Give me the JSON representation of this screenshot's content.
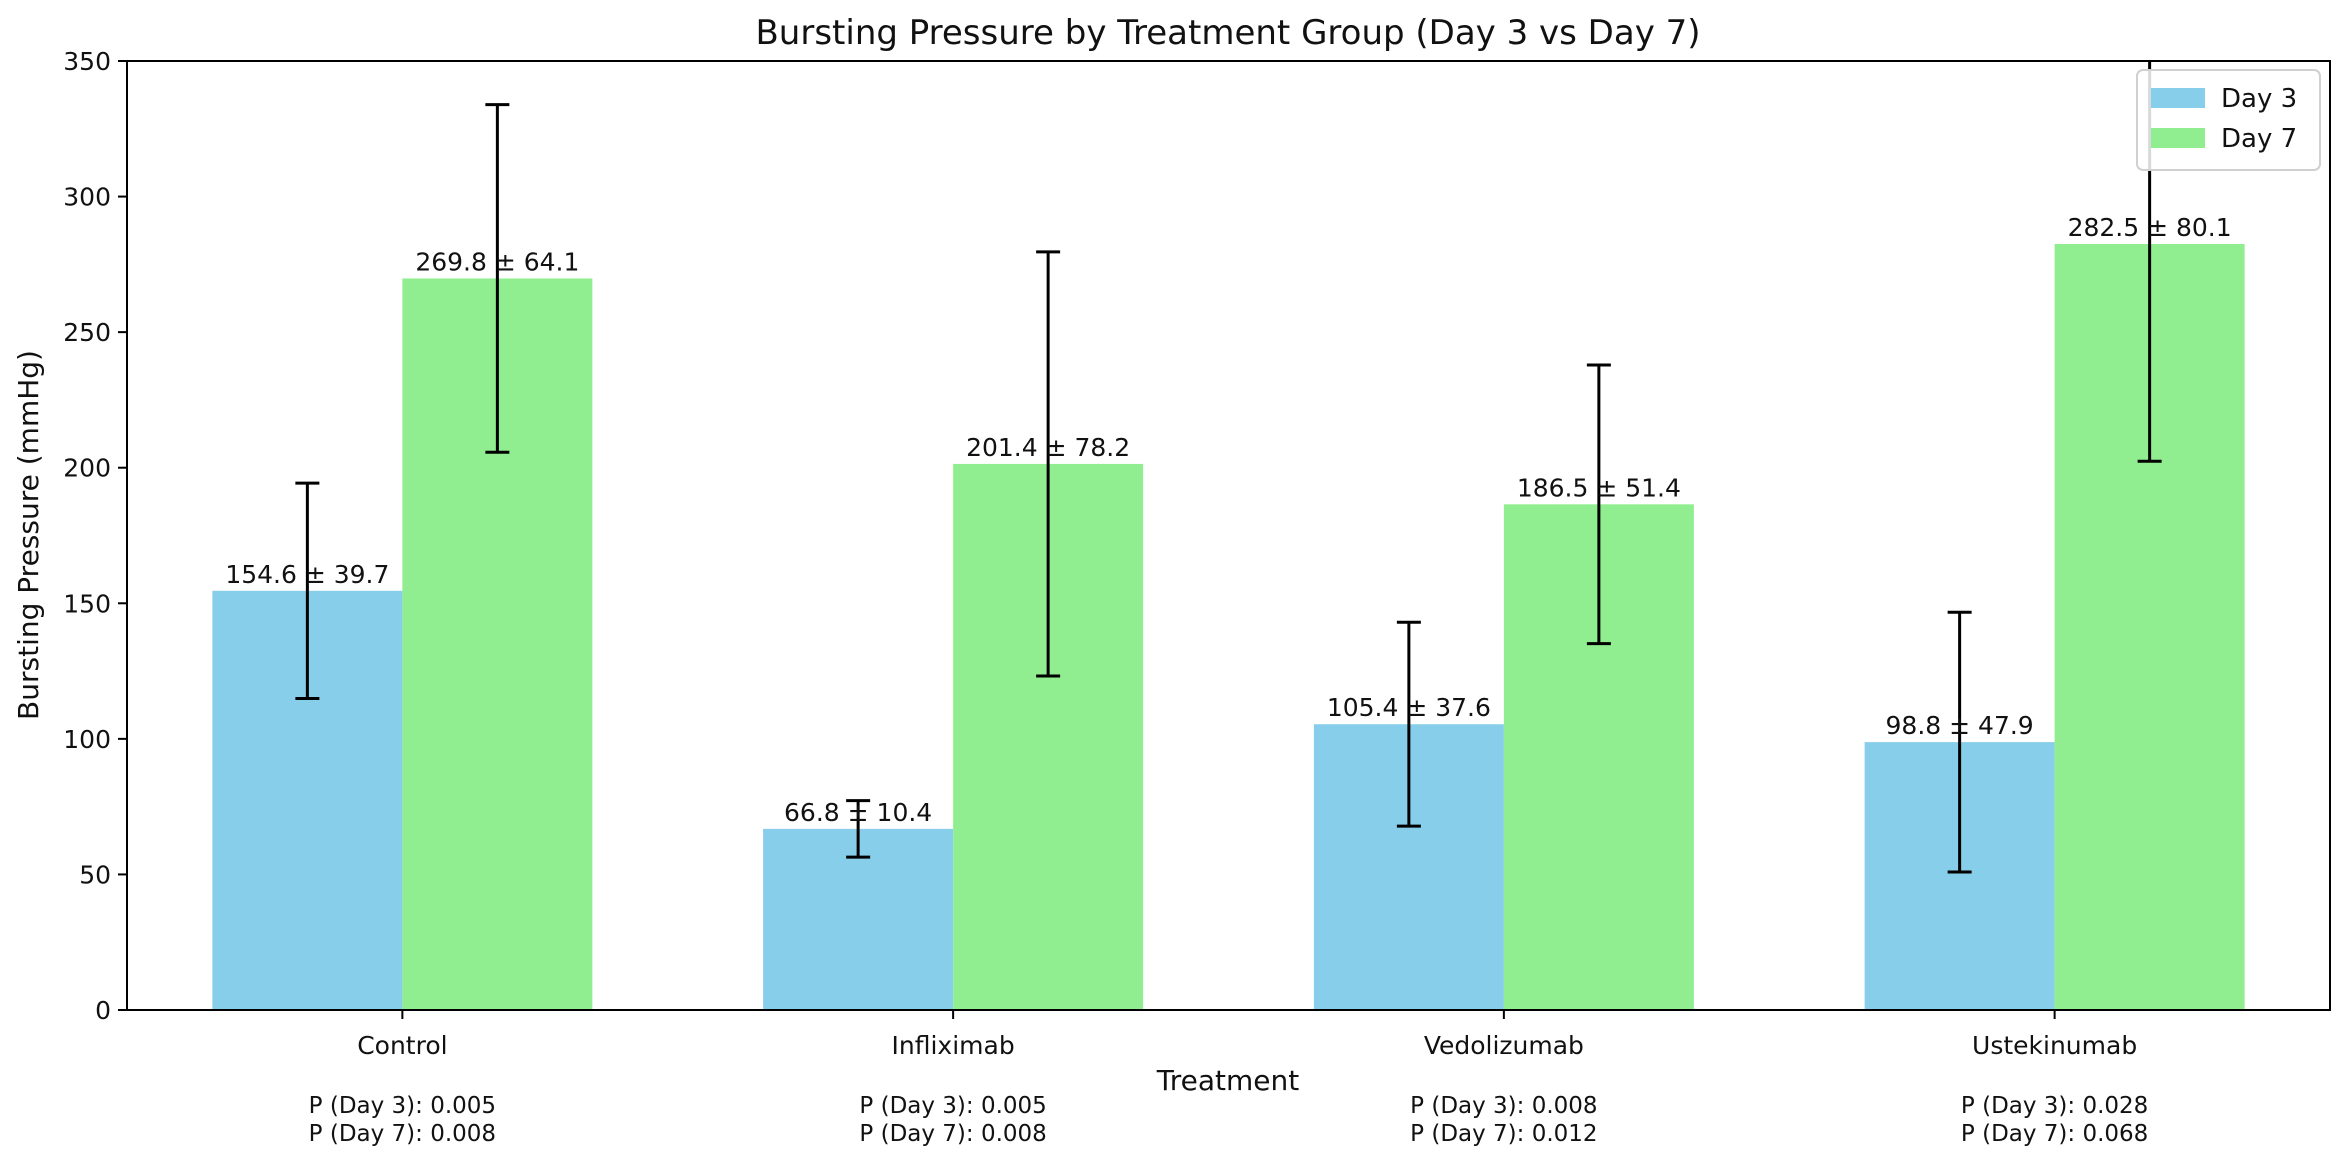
{
  "chart_data": {
    "type": "bar",
    "title": "Bursting Pressure by Treatment Group (Day 3 vs Day 7)",
    "xlabel": "Treatment",
    "ylabel": "Bursting Pressure (mmHg)",
    "ylim": [
      0,
      350
    ],
    "yticks": [
      0,
      50,
      100,
      150,
      200,
      250,
      300,
      350
    ],
    "grid": false,
    "legend_position": "top-right",
    "categories": [
      "Control",
      "Infliximab",
      "Vedolizumab",
      "Ustekinumab"
    ],
    "series": [
      {
        "name": "Day 3",
        "color": "#87ceeb",
        "values": [
          154.6,
          66.8,
          105.4,
          98.8
        ],
        "errors": [
          39.7,
          10.4,
          37.6,
          47.9
        ],
        "labels": [
          "154.6 ± 39.7",
          "66.8 ± 10.4",
          "105.4 ± 37.6",
          "98.8 ± 47.9"
        ]
      },
      {
        "name": "Day 7",
        "color": "#90ee90",
        "values": [
          269.8,
          201.4,
          186.5,
          282.5
        ],
        "errors": [
          64.1,
          78.2,
          51.4,
          80.1
        ],
        "labels": [
          "269.8 ± 64.1",
          "201.4 ± 78.2",
          "186.5 ± 51.4",
          "282.5 ± 80.1"
        ]
      }
    ],
    "p_values": [
      {
        "day3": "P (Day 3): 0.005",
        "day7": "P (Day 7): 0.008"
      },
      {
        "day3": "P (Day 3): 0.005",
        "day7": "P (Day 7): 0.008"
      },
      {
        "day3": "P (Day 3): 0.008",
        "day7": "P (Day 7): 0.012"
      },
      {
        "day3": "P (Day 3): 0.028",
        "day7": "P (Day 7): 0.068"
      }
    ]
  }
}
